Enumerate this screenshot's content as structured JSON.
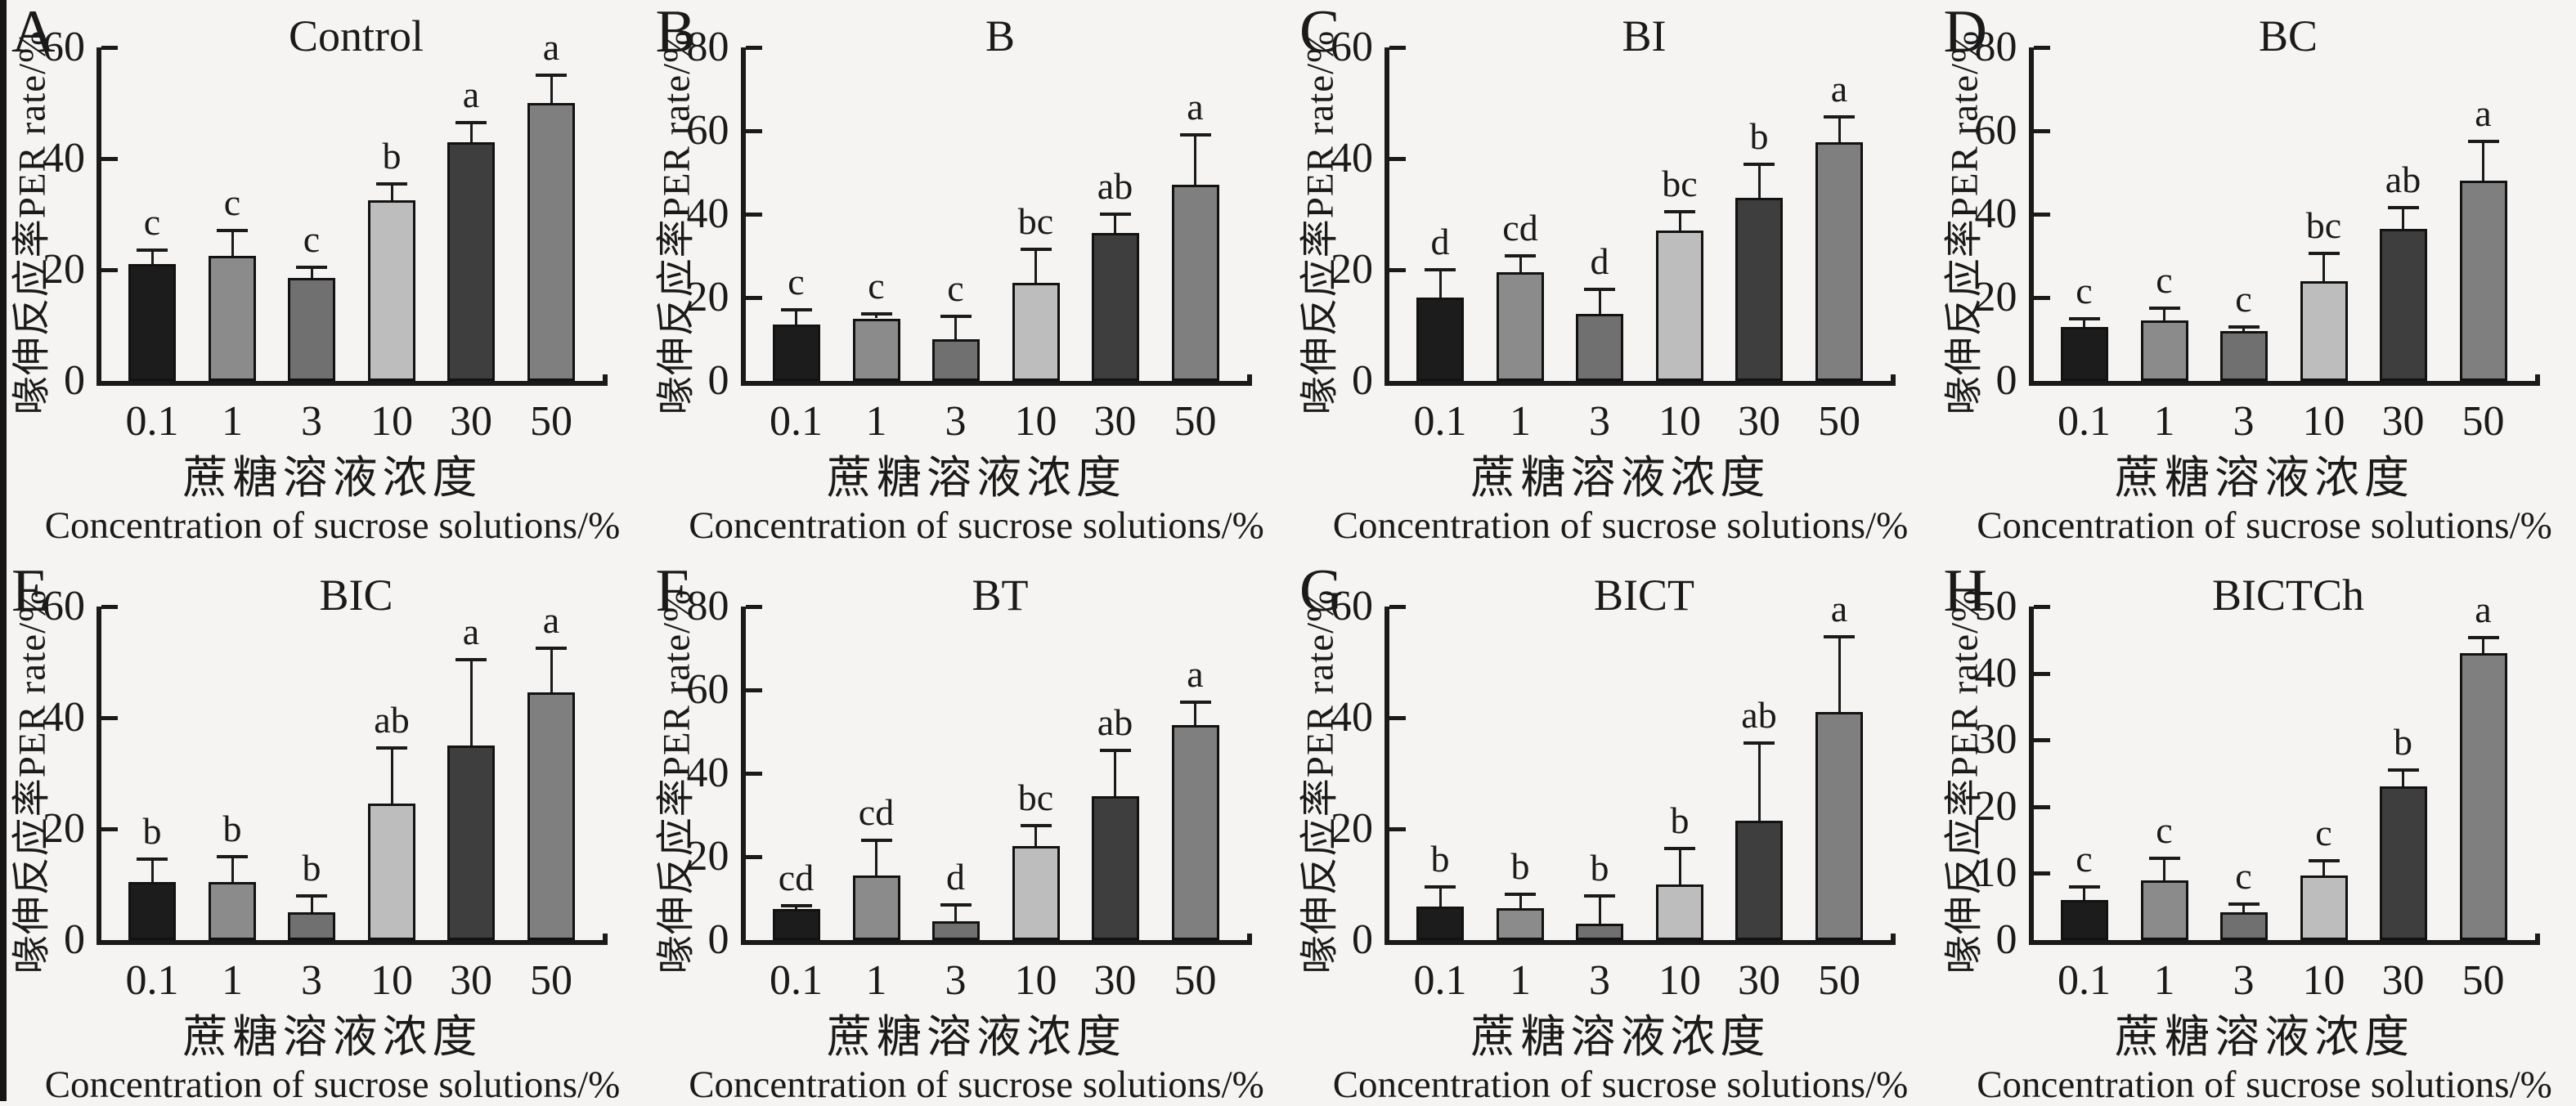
{
  "figure": {
    "description_note": "",
    "background": "#f5f4f2",
    "ink_color": "#1a1a1a"
  },
  "labels": {
    "ylabel": "喙伸反应率PER rate/%",
    "xlabel_cn": "蔗糖溶液浓度",
    "xlabel_en": "Concentration of sucrose solutions/%",
    "categories": [
      "0.1",
      "1",
      "3",
      "10",
      "30",
      "50"
    ]
  },
  "style": {
    "bar_colors": [
      "#1c1c1c",
      "#8b8b8b",
      "#707070",
      "#bdbdbd",
      "#3e3e3e",
      "#7f7f7f"
    ]
  },
  "chart_data": [
    {
      "type": "bar",
      "panel": "A",
      "title": "Control",
      "ylim": [
        0,
        60
      ],
      "yticks": [
        0,
        20,
        40,
        60
      ],
      "categories": [
        "0.1",
        "1",
        "3",
        "10",
        "30",
        "50"
      ],
      "values": [
        21,
        22.5,
        18.5,
        32.5,
        43,
        50
      ],
      "errors": [
        2.5,
        4.5,
        2,
        3,
        3.5,
        5
      ],
      "sig_letters": [
        "c",
        "c",
        "c",
        "b",
        "a",
        "a"
      ],
      "xlabel": "蔗糖溶液浓度 Concentration of sucrose solutions/%",
      "ylabel": "喙伸反应率PER rate/%",
      "legend": "none",
      "grid": false
    },
    {
      "type": "bar",
      "panel": "B",
      "title": "B",
      "ylim": [
        0,
        80
      ],
      "yticks": [
        0,
        20,
        40,
        60,
        80
      ],
      "categories": [
        "0.1",
        "1",
        "3",
        "10",
        "30",
        "50"
      ],
      "values": [
        13.5,
        15,
        10,
        23.5,
        35.5,
        47
      ],
      "errors": [
        3.5,
        1,
        5.5,
        8,
        4.5,
        12
      ],
      "sig_letters": [
        "c",
        "c",
        "c",
        "bc",
        "ab",
        "a"
      ],
      "xlabel": "蔗糖溶液浓度 Concentration of sucrose solutions/%",
      "ylabel": "喙伸反应率PER rate/%",
      "legend": "none",
      "grid": false
    },
    {
      "type": "bar",
      "panel": "C",
      "title": "BI",
      "ylim": [
        0,
        60
      ],
      "yticks": [
        0,
        20,
        40,
        60
      ],
      "categories": [
        "0.1",
        "1",
        "3",
        "10",
        "30",
        "50"
      ],
      "values": [
        15,
        19.5,
        12,
        27,
        33,
        43
      ],
      "errors": [
        5,
        3,
        4.5,
        3.5,
        6,
        4.5
      ],
      "sig_letters": [
        "d",
        "cd",
        "d",
        "bc",
        "b",
        "a"
      ],
      "xlabel": "蔗糖溶液浓度 Concentration of sucrose solutions/%",
      "ylabel": "喙伸反应率PER rate/%",
      "legend": "none",
      "grid": false
    },
    {
      "type": "bar",
      "panel": "D",
      "title": "BC",
      "ylim": [
        0,
        80
      ],
      "yticks": [
        0,
        20,
        40,
        60,
        80
      ],
      "categories": [
        "0.1",
        "1",
        "3",
        "10",
        "30",
        "50"
      ],
      "values": [
        13,
        14.5,
        12,
        24,
        36.5,
        48
      ],
      "errors": [
        2,
        3,
        1,
        6.5,
        5,
        9.5
      ],
      "sig_letters": [
        "c",
        "c",
        "c",
        "bc",
        "ab",
        "a"
      ],
      "xlabel": "蔗糖溶液浓度 Concentration of sucrose solutions/%",
      "ylabel": "喙伸反应率PER rate/%",
      "legend": "none",
      "grid": false
    },
    {
      "type": "bar",
      "panel": "E",
      "title": "BIC",
      "ylim": [
        0,
        60
      ],
      "yticks": [
        0,
        20,
        40,
        60
      ],
      "categories": [
        "0.1",
        "1",
        "3",
        "10",
        "30",
        "50"
      ],
      "values": [
        10.5,
        10.5,
        5,
        24.5,
        35,
        44.5
      ],
      "errors": [
        4,
        4.5,
        3,
        10,
        15.5,
        8
      ],
      "sig_letters": [
        "b",
        "b",
        "b",
        "ab",
        "a",
        "a"
      ],
      "xlabel": "蔗糖溶液浓度 Concentration of sucrose solutions/%",
      "ylabel": "喙伸反应率PER rate/%",
      "legend": "none",
      "grid": false
    },
    {
      "type": "bar",
      "panel": "F",
      "title": "BT",
      "ylim": [
        0,
        80
      ],
      "yticks": [
        0,
        20,
        40,
        60,
        80
      ],
      "categories": [
        "0.1",
        "1",
        "3",
        "10",
        "30",
        "50"
      ],
      "values": [
        7.5,
        15.5,
        4.5,
        22.5,
        34.5,
        51.5
      ],
      "errors": [
        0.7,
        8.5,
        4,
        5,
        11,
        5.5
      ],
      "sig_letters": [
        "cd",
        "cd",
        "d",
        "bc",
        "ab",
        "a"
      ],
      "xlabel": "蔗糖溶液浓度 Concentration of sucrose solutions/%",
      "ylabel": "喙伸反应率PER rate/%",
      "legend": "none",
      "grid": false
    },
    {
      "type": "bar",
      "panel": "G",
      "title": "BICT",
      "ylim": [
        0,
        60
      ],
      "yticks": [
        0,
        20,
        40,
        60
      ],
      "categories": [
        "0.1",
        "1",
        "3",
        "10",
        "30",
        "50"
      ],
      "values": [
        6,
        5.8,
        3,
        10,
        21.5,
        41
      ],
      "errors": [
        3.5,
        2.5,
        5,
        6.5,
        14,
        13.5
      ],
      "sig_letters": [
        "b",
        "b",
        "b",
        "b",
        "ab",
        "a"
      ],
      "xlabel": "蔗糖溶液浓度 Concentration of sucrose solutions/%",
      "ylabel": "喙伸反应率PER rate/%",
      "legend": "none",
      "grid": false
    },
    {
      "type": "bar",
      "panel": "H",
      "title": "BICTCh",
      "ylim": [
        0,
        50
      ],
      "yticks": [
        0,
        10,
        20,
        30,
        40,
        50
      ],
      "categories": [
        "0.1",
        "1",
        "3",
        "10",
        "30",
        "50"
      ],
      "values": [
        6,
        9,
        4.2,
        9.7,
        23,
        43
      ],
      "errors": [
        2,
        3.2,
        1.2,
        2.2,
        2.5,
        2.3
      ],
      "sig_letters": [
        "c",
        "c",
        "c",
        "c",
        "b",
        "a"
      ],
      "xlabel": "蔗糖溶液浓度 Concentration of sucrose solutions/%",
      "ylabel": "喙伸反应率PER rate/%",
      "legend": "none",
      "grid": false
    }
  ]
}
